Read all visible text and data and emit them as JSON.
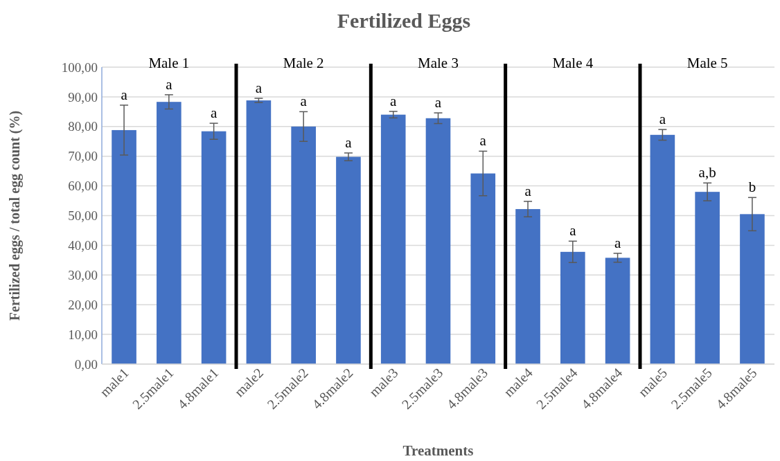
{
  "chart_data": {
    "type": "bar",
    "title": "Fertilized Eggs",
    "xlabel": "Treatments",
    "ylabel": "Fertilized eggs / total egg count (%)",
    "categories": [
      "male1",
      "2.5male1",
      "4.8male1",
      "male2",
      "2.5male2",
      "4.8male2",
      "male3",
      "2.5male3",
      "4.8male3",
      "male4",
      "2.5male4",
      "4.8male4",
      "male5",
      "2.5male5",
      "4.8male5"
    ],
    "values": [
      78.8,
      88.3,
      78.4,
      88.8,
      80.0,
      69.8,
      84.0,
      82.8,
      64.2,
      52.2,
      37.8,
      35.8,
      77.2,
      58.0,
      50.5
    ],
    "errors": [
      8.4,
      2.4,
      2.7,
      0.7,
      5.0,
      1.3,
      1.1,
      1.8,
      7.5,
      2.6,
      3.6,
      1.5,
      1.8,
      3.0,
      5.6
    ],
    "color": "#4472c4",
    "ylim": [
      0,
      100
    ],
    "yticks": [
      {
        "value": 0,
        "label": "0,00"
      },
      {
        "value": 10,
        "label": "10,00"
      },
      {
        "value": 20,
        "label": "20,00"
      },
      {
        "value": 30,
        "label": "30,00"
      },
      {
        "value": 40,
        "label": "40,00"
      },
      {
        "value": 50,
        "label": "50,00"
      },
      {
        "value": 60,
        "label": "60,00"
      },
      {
        "value": 70,
        "label": "70,00"
      },
      {
        "value": 80,
        "label": "80,00"
      },
      {
        "value": 90,
        "label": "90,00"
      },
      {
        "value": 100,
        "label": "100,00"
      }
    ],
    "grid": "y",
    "annotations": [
      "Male 1",
      "Male 2",
      "Male 3",
      "Male 4",
      "Male 5",
      {
        "text": "a",
        "x": "male1",
        "y": 87.2
      },
      {
        "text": "a",
        "x": "2.5male1",
        "y": 90.7
      },
      {
        "text": "a",
        "x": "4.8male1",
        "y": 81.1
      },
      {
        "text": "a",
        "x": "male2",
        "y": 89.5
      },
      {
        "text": "a",
        "x": "2.5male2",
        "y": 85.0
      },
      {
        "text": "a",
        "x": "4.8male2",
        "y": 71.1
      },
      {
        "text": "a",
        "x": "male3",
        "y": 85.1
      },
      {
        "text": "a",
        "x": "2.5male3",
        "y": 84.6
      },
      {
        "text": "a",
        "x": "4.8male3",
        "y": 71.7
      },
      {
        "text": "a",
        "x": "male4",
        "y": 54.8
      },
      {
        "text": "a",
        "x": "2.5male4",
        "y": 41.4
      },
      {
        "text": "a",
        "x": "4.8male4",
        "y": 37.3
      },
      {
        "text": "a",
        "x": "male5",
        "y": 79.0
      },
      {
        "text": "a,b",
        "x": "2.5male5",
        "y": 61.0
      },
      {
        "text": "b",
        "x": "4.8male5",
        "y": 56.1
      }
    ]
  }
}
